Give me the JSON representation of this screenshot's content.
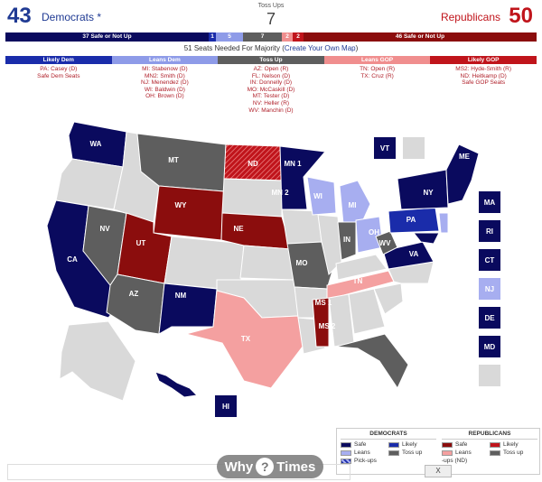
{
  "header": {
    "dem_count": "43",
    "dem_label": "Democrats *",
    "rep_count": "50",
    "rep_label": "Republicans",
    "tossup_label": "Toss Ups",
    "tossup_count": "7"
  },
  "seatbar": {
    "safe_dem": "37 Safe or Not Up",
    "likely_dem": "1",
    "leans_dem": "5",
    "tossup": "7",
    "leans_gop": "2",
    "likely_gop": "2",
    "safe_gop": "46 Safe or Not Up"
  },
  "majority": {
    "text": "51 Seats Needed For Majority (",
    "link": "Create Your Own Map",
    "close": ")"
  },
  "categories": [
    {
      "title": "Likely Dem",
      "color": "#1a2caa",
      "items": "PA: Casey (D)\nSafe Dem Seats"
    },
    {
      "title": "Leans Dem",
      "color": "#8e9be8",
      "items": "MI: Stabenow (D)\nMN2: Smith (D)\nNJ: Menendez (D)\nWI: Baldwin (D)\nOH: Brown (D)"
    },
    {
      "title": "Toss Up",
      "color": "#5e5e5e",
      "items": "AZ: Open (R)\nFL: Nelson (D)\nIN: Donnelly (D)\nMO: McCaskill (D)\nMT: Tester (D)\nNV: Heller (R)\nWV: Manchin (D)"
    },
    {
      "title": "Leans GOP",
      "color": "#f08e8e",
      "items": "TN: Open (R)\nTX: Cruz (R)"
    },
    {
      "title": "Likely GOP",
      "color": "#c0141b",
      "items": "MS2: Hyde-Smith (R)\nND: Heitkamp (D)\nSafe GOP Seats"
    }
  ],
  "states": {
    "WA": "WA",
    "MT": "MT",
    "ND": "ND",
    "MN1": "MN 1",
    "MN2": "MN 2",
    "WI": "WI",
    "MI": "MI",
    "NY": "NY",
    "ME": "ME",
    "PA": "PA",
    "OH": "OH",
    "IN": "IN",
    "WV": "WV",
    "VA": "VA",
    "NV": "NV",
    "WY": "WY",
    "NE": "NE",
    "UT": "UT",
    "CA": "CA",
    "MO": "MO",
    "TN": "TN",
    "AZ": "AZ",
    "NM": "NM",
    "MS1": "MS 1",
    "MS2": "MS 2",
    "TX": "TX",
    "FL": "FL",
    "HI": "HI"
  },
  "small_states": {
    "VT": "VT",
    "MA": "MA",
    "RI": "RI",
    "CT": "CT",
    "NJ": "NJ",
    "DE": "DE",
    "MD": "MD"
  },
  "legend": {
    "dem_title": "DEMOCRATS",
    "rep_title": "REPUBLICANS",
    "safe": "Safe",
    "likely": "Likely",
    "leans": "Leans",
    "tossup": "Toss up",
    "pickups": "Pick-ups",
    "rep_pickups": "-ups (ND)"
  },
  "watermark": {
    "left": "Why",
    "q": "?",
    "right": "Times"
  },
  "close_button": "X",
  "colors": {
    "safe_dem": "#0a0a5e",
    "likely_dem": "#1a2caa",
    "leans_dem": "#a7aef0",
    "tossup": "#5e5e5e",
    "leans_gop": "#f4a0a0",
    "likely_gop": "#c0141b",
    "safe_gop": "#8b0d0d",
    "not_up": "#d9d9d9"
  }
}
